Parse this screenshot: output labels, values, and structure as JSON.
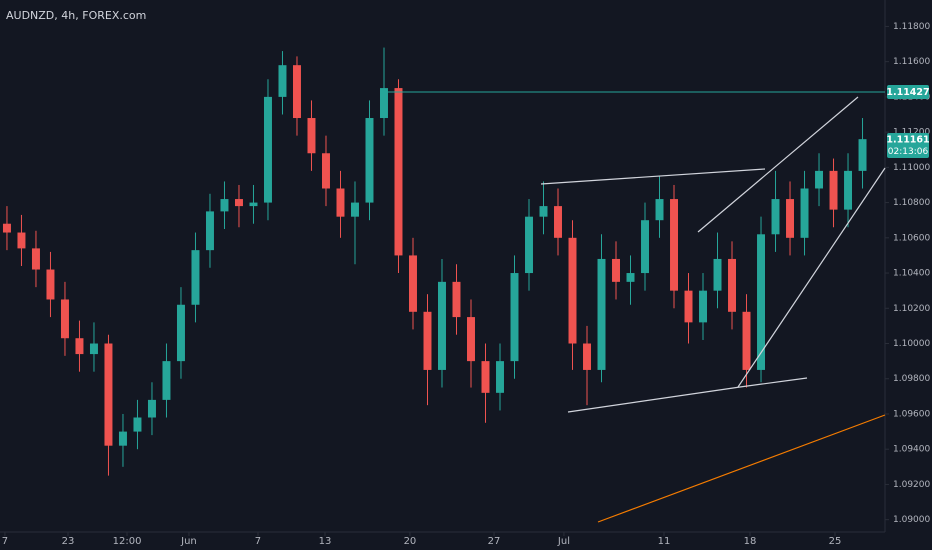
{
  "chart_data": {
    "type": "candlestick",
    "title": "AUDNZD, 4h, FOREX.com",
    "up_color": "#26a69a",
    "down_color": "#ef5350",
    "grid": false,
    "price_line_label": "1.11427",
    "last_price_label": "1.11161",
    "countdown": "02:13:06",
    "x": [
      0,
      1,
      2,
      3,
      4,
      5,
      6,
      7,
      8,
      9,
      10,
      11,
      12,
      13,
      14,
      15,
      16,
      17,
      18,
      19,
      20,
      21,
      22,
      23,
      24,
      25,
      26,
      27,
      28,
      29,
      30,
      31,
      32,
      33,
      34,
      35,
      36,
      37,
      38,
      39,
      40,
      41,
      42,
      43,
      44,
      45,
      46,
      47,
      48,
      49,
      50,
      51,
      52,
      53,
      54,
      55,
      56,
      57,
      58,
      59
    ],
    "open": [
      1.1068,
      1.1063,
      1.1054,
      1.1042,
      1.1025,
      1.1003,
      1.0994,
      1.1,
      1.0942,
      1.095,
      1.0958,
      1.0968,
      1.099,
      1.1022,
      1.1053,
      1.1075,
      1.1082,
      1.1078,
      1.108,
      1.114,
      1.1158,
      1.1128,
      1.1108,
      1.1088,
      1.1072,
      1.108,
      1.1128,
      1.1145,
      1.105,
      1.1018,
      1.0985,
      1.1035,
      1.1015,
      1.099,
      1.0972,
      1.099,
      1.104,
      1.1072,
      1.1078,
      1.106,
      1.1,
      1.0985,
      1.1048,
      1.1035,
      1.104,
      1.107,
      1.1082,
      1.103,
      1.1012,
      1.103,
      1.1048,
      1.1018,
      1.0985,
      1.1062,
      1.1082,
      1.106,
      1.1088,
      1.1098,
      1.1076,
      1.1098
    ],
    "high": [
      1.1078,
      1.1073,
      1.1064,
      1.1052,
      1.1035,
      1.1013,
      1.1012,
      1.1005,
      1.096,
      1.0968,
      1.0978,
      1.1,
      1.1032,
      1.1063,
      1.1085,
      1.1092,
      1.109,
      1.109,
      1.115,
      1.1166,
      1.1163,
      1.1138,
      1.1118,
      1.1098,
      1.1092,
      1.1138,
      1.1168,
      1.115,
      1.106,
      1.1028,
      1.1048,
      1.1045,
      1.1025,
      1.1,
      1.1,
      1.105,
      1.1082,
      1.1092,
      1.1088,
      1.107,
      1.101,
      1.1062,
      1.1058,
      1.105,
      1.108,
      1.1095,
      1.109,
      1.104,
      1.104,
      1.1063,
      1.1058,
      1.1028,
      1.1072,
      1.1098,
      1.1092,
      1.1098,
      1.1108,
      1.1105,
      1.1108,
      1.1128
    ],
    "low": [
      1.1053,
      1.1044,
      1.1032,
      1.1015,
      1.0993,
      1.0984,
      1.0984,
      1.0925,
      1.093,
      1.094,
      1.0948,
      1.0958,
      1.098,
      1.1012,
      1.1043,
      1.1065,
      1.1066,
      1.1068,
      1.107,
      1.113,
      1.1118,
      1.1098,
      1.1078,
      1.106,
      1.1045,
      1.107,
      1.1118,
      1.104,
      1.1008,
      1.0965,
      1.0975,
      1.1005,
      1.0975,
      1.0955,
      1.0962,
      1.098,
      1.103,
      1.1062,
      1.105,
      1.0985,
      1.0965,
      1.0978,
      1.1025,
      1.1022,
      1.103,
      1.106,
      1.102,
      1.1,
      1.1002,
      1.102,
      1.1008,
      1.0975,
      1.0978,
      1.1052,
      1.105,
      1.105,
      1.1078,
      1.1066,
      1.1066,
      1.1088
    ],
    "close": [
      1.1063,
      1.1054,
      1.1042,
      1.1025,
      1.1003,
      1.0994,
      1.1,
      1.0942,
      1.095,
      1.0958,
      1.0968,
      1.099,
      1.1022,
      1.1053,
      1.1075,
      1.1082,
      1.1078,
      1.108,
      1.114,
      1.1158,
      1.1128,
      1.1108,
      1.1088,
      1.1072,
      1.108,
      1.1128,
      1.1145,
      1.105,
      1.1018,
      1.0985,
      1.1035,
      1.1015,
      1.099,
      1.0972,
      1.099,
      1.104,
      1.1072,
      1.1078,
      1.106,
      1.1,
      1.0985,
      1.1048,
      1.1035,
      1.104,
      1.107,
      1.1082,
      1.103,
      1.1012,
      1.103,
      1.1048,
      1.1018,
      1.0985,
      1.1062,
      1.1082,
      1.106,
      1.1088,
      1.1098,
      1.1076,
      1.1098,
      1.1116
    ],
    "xlim": [
      -0.48,
      60.55
    ],
    "xticks": [
      {
        "value": -0.14,
        "label": "7"
      },
      {
        "value": 4.21,
        "label": "23"
      },
      {
        "value": 8.28,
        "label": "12:00"
      },
      {
        "value": 12.55,
        "label": "Jun"
      },
      {
        "value": 17.31,
        "label": "7"
      },
      {
        "value": 21.93,
        "label": "13"
      },
      {
        "value": 27.79,
        "label": "20"
      },
      {
        "value": 33.59,
        "label": "27"
      },
      {
        "value": 38.41,
        "label": "Jul"
      },
      {
        "value": 45.31,
        "label": "11"
      },
      {
        "value": 51.24,
        "label": "18"
      },
      {
        "value": 57.1,
        "label": "25"
      }
    ],
    "ylim": [
      1.0893,
      1.1195
    ],
    "yticks": [
      {
        "value": 1.09,
        "label": "1.09000"
      },
      {
        "value": 1.092,
        "label": "1.09200"
      },
      {
        "value": 1.094,
        "label": "1.09400"
      },
      {
        "value": 1.096,
        "label": "1.09600"
      },
      {
        "value": 1.098,
        "label": "1.09800"
      },
      {
        "value": 1.1,
        "label": "1.10000"
      },
      {
        "value": 1.102,
        "label": "1.10200"
      },
      {
        "value": 1.104,
        "label": "1.10400"
      },
      {
        "value": 1.106,
        "label": "1.10600"
      },
      {
        "value": 1.108,
        "label": "1.10800"
      },
      {
        "value": 1.11,
        "label": "1.11000"
      },
      {
        "value": 1.112,
        "label": "1.11200"
      },
      {
        "value": 1.114,
        "label": "1.11400"
      },
      {
        "value": 1.116,
        "label": "1.11600"
      },
      {
        "value": 1.118,
        "label": "1.11800"
      }
    ]
  }
}
